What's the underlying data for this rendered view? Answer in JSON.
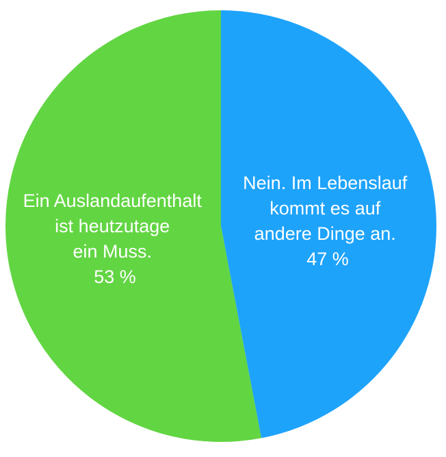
{
  "chart_data": {
    "type": "pie",
    "slices": [
      {
        "label_lines": [
          "Nein. Im Lebenslauf",
          "kommt es auf",
          "andere Dinge an."
        ],
        "value": 47,
        "value_text": "47 %",
        "color": "#1ea3fb"
      },
      {
        "label_lines": [
          "Ein Auslandaufenthalt",
          "ist heutzutage",
          "ein Muss."
        ],
        "value": 53,
        "value_text": "53 %",
        "color": "#62d543"
      }
    ],
    "start_angle_deg": 0,
    "direction": "clockwise"
  }
}
